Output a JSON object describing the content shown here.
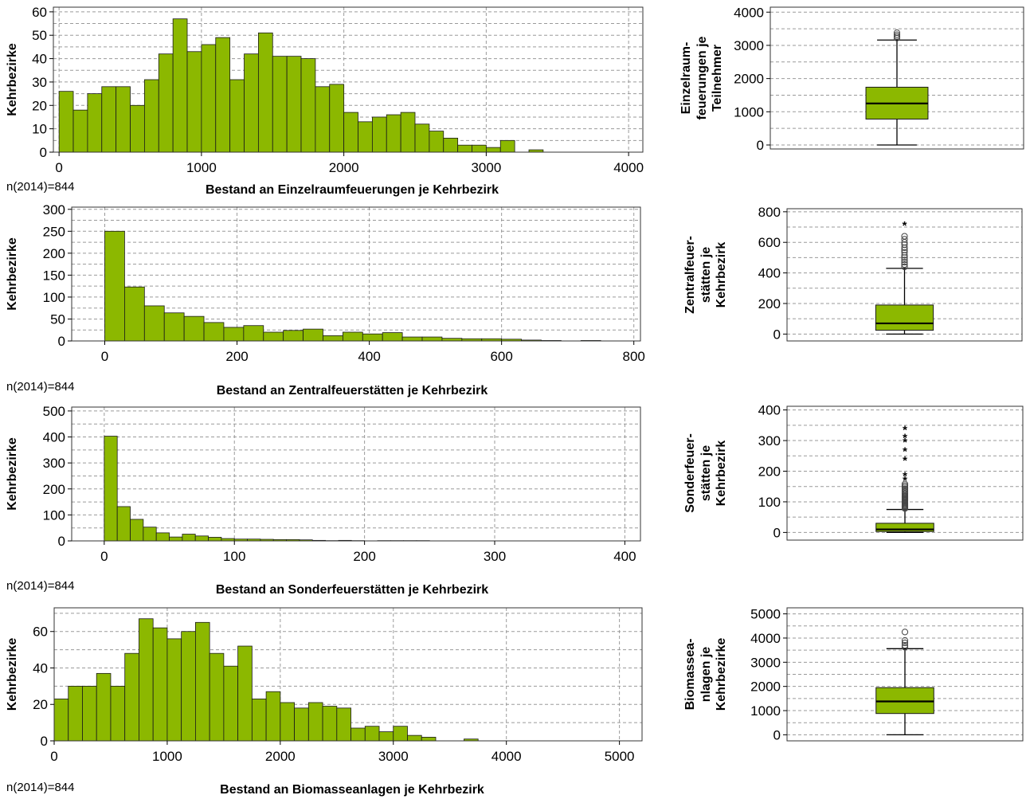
{
  "colors": {
    "bar": "#8cb800",
    "box": "#8cb800",
    "grid": "#9a9a9a",
    "axis": "#000000"
  },
  "chart_data": [
    {
      "type": "bar",
      "title": "",
      "xlabel": "Bestand an Einzelraumfeuerungen je Kehrbezirk",
      "ylabel": "Kehrbezirke",
      "note": "n(2014)=844",
      "bin_start": 0,
      "bin_width": 100,
      "values": [
        26,
        18,
        25,
        28,
        28,
        20,
        31,
        42,
        57,
        43,
        46,
        49,
        31,
        42,
        51,
        41,
        41,
        40,
        28,
        29,
        17,
        13,
        15,
        16,
        17,
        12,
        9,
        6,
        3,
        3,
        2,
        5,
        0,
        1
      ],
      "xlim": [
        -40,
        4100
      ],
      "ylim": [
        0,
        62
      ],
      "xticks": [
        0,
        1000,
        2000,
        3000,
        4000
      ],
      "yticks": [
        0,
        10,
        20,
        30,
        40,
        50,
        60
      ],
      "grid": true
    },
    {
      "type": "bar",
      "title": "",
      "xlabel": "Bestand an Zentralfeuerstätten je Kehrbezirk",
      "ylabel": "Kehrbezirke",
      "note": "n(2014)=844",
      "bin_start": 0,
      "bin_width": 30,
      "values": [
        250,
        123,
        80,
        64,
        56,
        42,
        31,
        35,
        20,
        24,
        27,
        12,
        20,
        16,
        19,
        9,
        9,
        6,
        5,
        5,
        4,
        2,
        1,
        0,
        1
      ],
      "xlim": [
        -50,
        810
      ],
      "ylim": [
        0,
        305
      ],
      "xticks": [
        0,
        200,
        400,
        600,
        800
      ],
      "yticks": [
        0,
        50,
        100,
        150,
        200,
        250,
        300
      ],
      "grid": true
    },
    {
      "type": "bar",
      "title": "",
      "xlabel": "Bestand an Sonderfeuerstätten je Kehrbezirk",
      "ylabel": "Kehrbezirke",
      "note": "n(2014)=844",
      "bin_start": 0,
      "bin_width": 10,
      "values": [
        403,
        132,
        83,
        53,
        31,
        15,
        26,
        19,
        14,
        9,
        7,
        7,
        6,
        5,
        5,
        4,
        2,
        1,
        2,
        1,
        0,
        1,
        1,
        1,
        1
      ],
      "xlim": [
        -25,
        412
      ],
      "ylim": [
        0,
        515
      ],
      "xticks": [
        0,
        100,
        200,
        300,
        400
      ],
      "yticks": [
        0,
        100,
        200,
        300,
        400,
        500
      ],
      "grid": true
    },
    {
      "type": "bar",
      "title": "",
      "xlabel": "Bestand an Biomasseanlagen je Kehrbezirk",
      "ylabel": "Kehrbezirke",
      "note": "n(2014)=844",
      "bin_start": 0,
      "bin_width": 125,
      "values": [
        23,
        30,
        30,
        37,
        30,
        48,
        67,
        62,
        56,
        60,
        65,
        48,
        41,
        52,
        23,
        27,
        21,
        18,
        21,
        19,
        18,
        7,
        8,
        5,
        8,
        3,
        2,
        0,
        0,
        1
      ],
      "xlim": [
        0,
        5200
      ],
      "ylim": [
        0,
        73
      ],
      "xticks": [
        0,
        1000,
        2000,
        3000,
        4000,
        5000
      ],
      "yticks": [
        0,
        20,
        40,
        60
      ],
      "grid": true
    },
    {
      "type": "box",
      "title": "",
      "ylabel_lines": [
        "Einzelraum-",
        "feuerungen je",
        "Teilnehmer"
      ],
      "min": 0,
      "q1": 780,
      "median": 1250,
      "q3": 1740,
      "max": 3160,
      "outliers_circle": [
        3220,
        3270,
        3320,
        3380
      ],
      "outliers_star": [],
      "ylim": [
        -120,
        4150
      ],
      "yticks": [
        0,
        1000,
        2000,
        3000,
        4000
      ],
      "grid": true
    },
    {
      "type": "box",
      "title": "",
      "ylabel_lines": [
        "Zentralfeuer-",
        "stätten je",
        "Kehrbezirk"
      ],
      "min": 0,
      "q1": 25,
      "median": 70,
      "q3": 190,
      "max": 430,
      "outliers_circle": [
        440,
        455,
        470,
        485,
        500,
        515,
        535,
        550,
        565,
        585,
        600,
        620,
        640
      ],
      "outliers_star": [
        720
      ],
      "ylim": [
        -45,
        820
      ],
      "yticks": [
        0,
        200,
        400,
        600,
        800
      ],
      "grid": true
    },
    {
      "type": "box",
      "title": "",
      "ylabel_lines": [
        "Sonderfeuer-",
        "stätten je",
        "Kehrbezirk"
      ],
      "min": 0,
      "q1": 3,
      "median": 10,
      "q3": 30,
      "max": 75,
      "outliers_circle": [
        78,
        81,
        84,
        87,
        90,
        93,
        96,
        99,
        102,
        105,
        108,
        111,
        114,
        117,
        120,
        124,
        128,
        133,
        138,
        143,
        148,
        153,
        158
      ],
      "outliers_star": [
        175,
        190,
        240,
        270,
        300,
        315,
        340
      ],
      "ylim": [
        -25,
        412
      ],
      "yticks": [
        0,
        100,
        200,
        300,
        400
      ],
      "grid": true
    },
    {
      "type": "box",
      "title": "",
      "ylabel_lines": [
        "Biomassea-",
        "nlagen je",
        "Kehrbezirke"
      ],
      "min": 0,
      "q1": 880,
      "median": 1380,
      "q3": 1950,
      "max": 3560,
      "outliers_circle": [
        3620,
        3700,
        3800,
        3900,
        4250
      ],
      "outliers_star": [],
      "ylim": [
        -250,
        5250
      ],
      "yticks": [
        0,
        1000,
        2000,
        3000,
        4000,
        5000
      ],
      "grid": true
    }
  ]
}
